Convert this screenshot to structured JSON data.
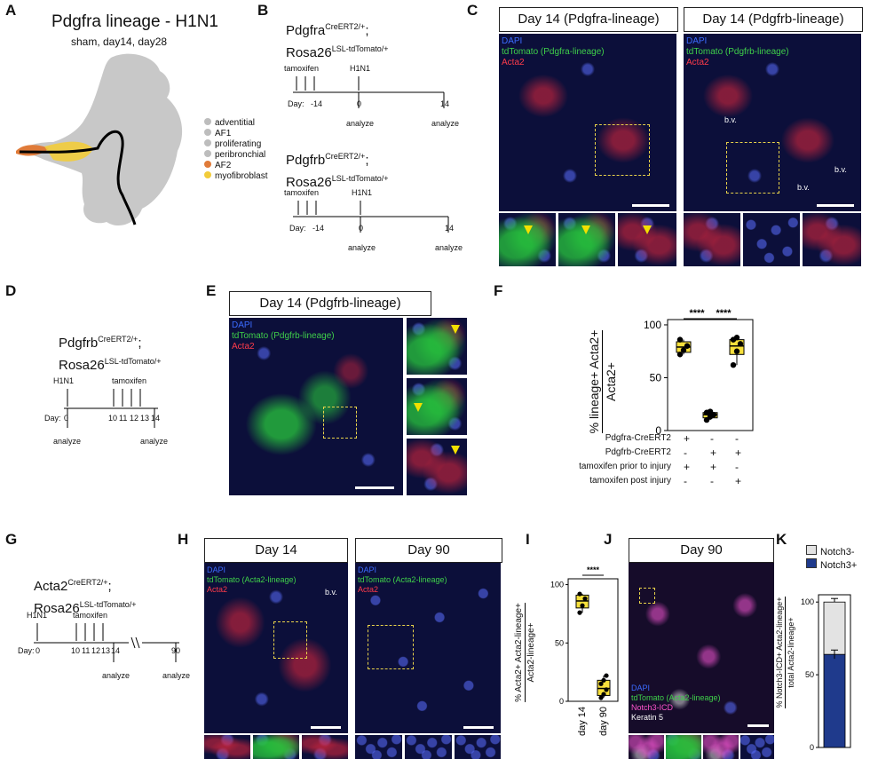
{
  "panelA": {
    "letter": "A",
    "title": "Pdgfra lineage - H1N1",
    "subtitle": "sham, day14, day28",
    "legend": [
      {
        "label": "adventitial",
        "color": "#bdbdbd"
      },
      {
        "label": "AF1",
        "color": "#bdbdbd"
      },
      {
        "label": "proliferating",
        "color": "#bdbdbd"
      },
      {
        "label": "peribronchial",
        "color": "#bdbdbd"
      },
      {
        "label": "AF2",
        "color": "#e07b39"
      },
      {
        "label": "myofibroblast",
        "color": "#f2cc3a"
      }
    ]
  },
  "panelB": {
    "letter": "B",
    "top": {
      "line1": "Pdgfra",
      "sup1": "CreERT2/+",
      "sep1": ";",
      "line2": "Rosa26",
      "sup2": "LSL-tdTomato/+",
      "tamoxifen": "tamoxifen",
      "injury": "H1N1",
      "day_prefix": "Day:",
      "ticks": [
        "-14",
        "0",
        "14"
      ],
      "analyze": [
        "analyze",
        "analyze"
      ]
    },
    "bottom": {
      "line1": "Pdgfrb",
      "sup1": "CreERT2/+",
      "sep1": ";",
      "line2": "Rosa26",
      "sup2": "LSL-tdTomato/+",
      "tamoxifen": "tamoxifen",
      "injury": "H1N1",
      "day_prefix": "Day:",
      "ticks": [
        "-14",
        "0",
        "14"
      ],
      "analyze": [
        "analyze",
        "analyze"
      ]
    }
  },
  "panelC": {
    "letter": "C",
    "left_header": "Day 14 (Pdgfra-lineage)",
    "right_header": "Day 14 (Pdgfrb-lineage)",
    "left_legend": [
      "DAPI",
      "tdTomato (Pdgfra-lineage)",
      "Acta2"
    ],
    "right_legend": [
      "DAPI",
      "tdTomato (Pdgfrb-lineage)",
      "Acta2"
    ],
    "bv": [
      "b.v.",
      "b.v.",
      "b.v."
    ]
  },
  "panelD": {
    "letter": "D",
    "line1": "Pdgfrb",
    "sup1": "CreERT2/+",
    "sep1": ";",
    "line2": "Rosa26",
    "sup2": "LSL-tdTomato/+",
    "injury": "H1N1",
    "tamoxifen": "tamoxifen",
    "day_prefix": "Day:",
    "ticks": [
      "0",
      "10",
      "11",
      "12",
      "13",
      "14"
    ],
    "analyze": [
      "analyze",
      "analyze"
    ]
  },
  "panelE": {
    "letter": "E",
    "header": "Day 14 (Pdgfrb-lineage)",
    "legend": [
      "DAPI",
      "tdTomato (Pdgfrb-lineage)",
      "Acta2"
    ]
  },
  "panelF": {
    "letter": "F",
    "ylabel_num": "% lineage+ Acta2+",
    "ylabel_den": "Acta2+",
    "yticks": [
      "0",
      "50",
      "100"
    ],
    "sig": [
      "****",
      "****"
    ],
    "conditions": [
      {
        "label": "Pdgfra-CreERT2",
        "marks": [
          "+",
          "-",
          "-"
        ]
      },
      {
        "label": "Pdgfrb-CreERT2",
        "marks": [
          "-",
          "+",
          "+"
        ]
      },
      {
        "label": "tamoxifen prior to injury",
        "marks": [
          "+",
          "+",
          "-"
        ]
      },
      {
        "label": "tamoxifen post injury",
        "marks": [
          "-",
          "-",
          "+"
        ]
      }
    ],
    "box_color": "#f7e03c"
  },
  "panelG": {
    "letter": "G",
    "line1": "Acta2",
    "sup1": "CreERT2/+",
    "sep1": ";",
    "line2": "Rosa26",
    "sup2": "LSL-tdTomato/+",
    "injury": "H1N1",
    "tamoxifen": "tamoxifen",
    "day_prefix": "Day:",
    "ticks": [
      "0",
      "10",
      "11",
      "12",
      "13",
      "14",
      "90"
    ],
    "analyze": [
      "analyze",
      "analyze"
    ]
  },
  "panelH": {
    "letter": "H",
    "left_header": "Day 14",
    "right_header": "Day 90",
    "left_legend": [
      "DAPI",
      "tdTomato (Acta2-lineage)",
      "Acta2"
    ],
    "right_legend": [
      "DAPI",
      "tdTomato (Acta2-lineage)",
      "Acta2"
    ],
    "bv": "b.v."
  },
  "panelI": {
    "letter": "I",
    "ylabel_num": "% Acta2+ Acta2-lineage+",
    "ylabel_den": "Acta2-lineage+",
    "yticks": [
      "0",
      "50",
      "100"
    ],
    "sig": "****",
    "xcats": [
      "day 14",
      "day 90"
    ]
  },
  "panelJ": {
    "letter": "J",
    "header": "Day 90",
    "legend": [
      "DAPI",
      "tdTomato (Acta2-lineage)",
      "Notch3-ICD",
      "Keratin 5"
    ]
  },
  "panelK": {
    "letter": "K",
    "legend": [
      "Notch3-",
      "Notch3+"
    ],
    "ylabel_num": "% Notch3-ICD+ Acta2-lineage+",
    "ylabel_den": "total Acta2-lineage+",
    "yticks": [
      "0",
      "50",
      "100"
    ]
  },
  "chart_data": [
    {
      "type": "box",
      "panel": "F",
      "categories": [
        "Pdgfra prior",
        "Pdgfrb prior",
        "Pdgfrb post"
      ],
      "points": [
        [
          72,
          76,
          80,
          86
        ],
        [
          10,
          13,
          15,
          17,
          18
        ],
        [
          62,
          75,
          82,
          86,
          88
        ]
      ],
      "boxes": [
        {
          "min": 72,
          "q1": 74,
          "median": 79,
          "q3": 84,
          "max": 86
        },
        {
          "min": 10,
          "q1": 12,
          "median": 15,
          "q3": 17,
          "max": 18
        },
        {
          "min": 62,
          "q1": 72,
          "median": 80,
          "q3": 86,
          "max": 88
        }
      ],
      "ylim": [
        0,
        105
      ]
    },
    {
      "type": "box",
      "panel": "I",
      "categories": [
        "day 14",
        "day 90"
      ],
      "points": [
        [
          76,
          82,
          88,
          92
        ],
        [
          3,
          6,
          10,
          15,
          18,
          22
        ]
      ],
      "boxes": [
        {
          "min": 76,
          "q1": 80,
          "median": 86,
          "q3": 91,
          "max": 92
        },
        {
          "min": 3,
          "q1": 5,
          "median": 11,
          "q3": 18,
          "max": 22
        }
      ],
      "ylim": [
        0,
        105
      ]
    },
    {
      "type": "bar",
      "panel": "K",
      "categories": [
        ""
      ],
      "series": [
        {
          "name": "Notch3+",
          "values": [
            64
          ],
          "color": "#1f3a8c"
        },
        {
          "name": "Notch3-",
          "values": [
            36
          ],
          "color": "#e3e3e3"
        }
      ],
      "error": [
        3
      ],
      "ylim": [
        0,
        105
      ]
    }
  ]
}
